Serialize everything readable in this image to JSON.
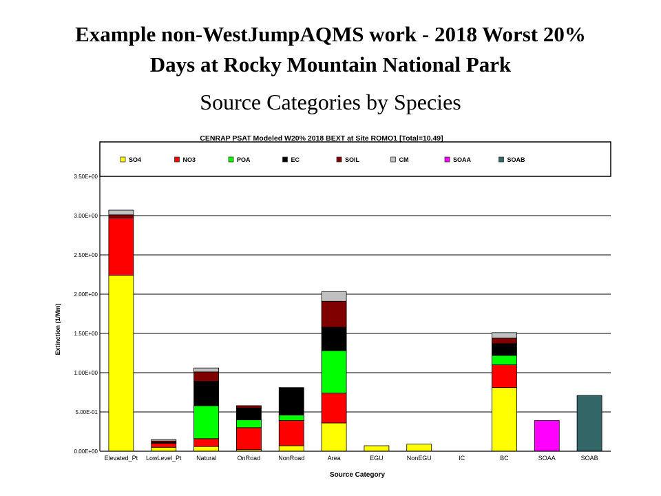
{
  "slide": {
    "title_line1": "Example non-WestJumpAQMS work - 2018 Worst 20%",
    "title_line2": "Days at Rocky Mountain National Park",
    "subtitle": "Source Categories by Species"
  },
  "chart_data": {
    "type": "bar",
    "stacked": true,
    "title": "CENRAP PSAT Modeled W20% 2018 BEXT at Site ROMO1 [Total=10.49]",
    "xlabel": "Source Category",
    "ylabel": "Extinction (1/Mm)",
    "ylim": [
      0,
      3.5
    ],
    "yticks": [
      0,
      0.5,
      1.0,
      1.5,
      2.0,
      2.5,
      3.0,
      3.5
    ],
    "ytick_labels": [
      "0.00E+00",
      "5.00E-01",
      "1.00E+00",
      "1.50E+00",
      "2.00E+00",
      "2.50E+00",
      "3.00E+00",
      "3.50E+00"
    ],
    "grid": true,
    "legend_position": "top",
    "categories": [
      "Elevated_Pt",
      "LowLevel_Pt",
      "Natural",
      "OnRoad",
      "NonRoad",
      "Area",
      "EGU",
      "NonEGU",
      "IC",
      "BC",
      "SOAA",
      "SOAB"
    ],
    "series": [
      {
        "name": "SO4",
        "color": "#ffff00",
        "values": [
          2.24,
          0.05,
          0.06,
          0.02,
          0.07,
          0.36,
          0.07,
          0.09,
          0.0,
          0.81,
          0.0,
          0.0
        ]
      },
      {
        "name": "NO3",
        "color": "#ff0000",
        "values": [
          0.73,
          0.05,
          0.1,
          0.28,
          0.32,
          0.38,
          0.0,
          0.0,
          0.0,
          0.29,
          0.0,
          0.0
        ]
      },
      {
        "name": "POA",
        "color": "#00ff00",
        "values": [
          0.0,
          0.0,
          0.42,
          0.1,
          0.07,
          0.54,
          0.0,
          0.0,
          0.0,
          0.12,
          0.0,
          0.0
        ]
      },
      {
        "name": "EC",
        "color": "#000000",
        "values": [
          0.0,
          0.01,
          0.31,
          0.15,
          0.35,
          0.3,
          0.0,
          0.0,
          0.0,
          0.15,
          0.0,
          0.0
        ]
      },
      {
        "name": "SOIL",
        "color": "#800000",
        "values": [
          0.04,
          0.02,
          0.12,
          0.03,
          0.0,
          0.33,
          0.0,
          0.0,
          0.0,
          0.07,
          0.0,
          0.0
        ]
      },
      {
        "name": "CM",
        "color": "#c0c0c0",
        "values": [
          0.06,
          0.02,
          0.05,
          0.0,
          0.0,
          0.12,
          0.0,
          0.0,
          0.0,
          0.07,
          0.0,
          0.0
        ]
      },
      {
        "name": "SOAA",
        "color": "#ff00ff",
        "values": [
          0.0,
          0.0,
          0.0,
          0.0,
          0.0,
          0.0,
          0.0,
          0.0,
          0.0,
          0.0,
          0.39,
          0.0
        ]
      },
      {
        "name": "SOAB",
        "color": "#336666",
        "values": [
          0.0,
          0.0,
          0.0,
          0.0,
          0.0,
          0.0,
          0.0,
          0.0,
          0.0,
          0.0,
          0.0,
          0.71
        ]
      }
    ]
  }
}
